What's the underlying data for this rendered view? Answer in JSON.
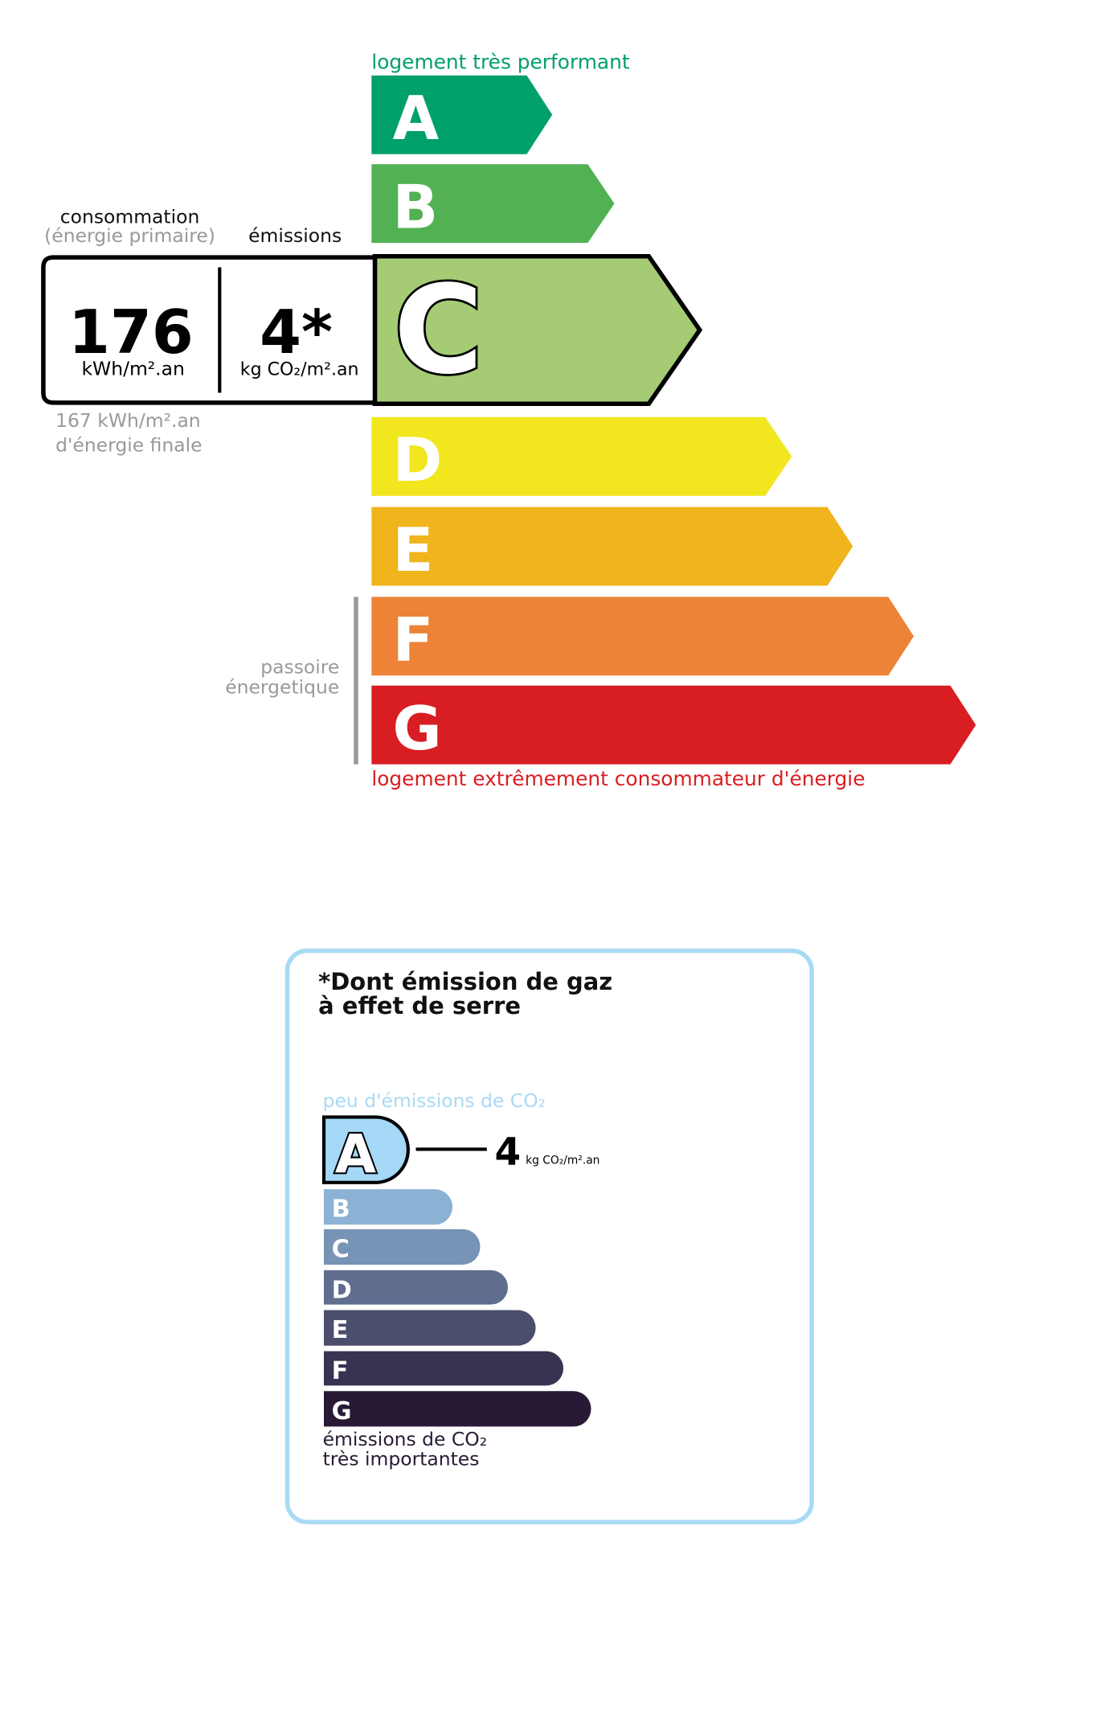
{
  "energy": {
    "top_label": "logement très performant",
    "bottom_label": "logement extrêmement consommateur d'énergie",
    "current_class": "C",
    "classes": [
      {
        "letter": "A",
        "color": "#00a06a"
      },
      {
        "letter": "B",
        "color": "#52b153"
      },
      {
        "letter": "C",
        "color": "#a5cc74"
      },
      {
        "letter": "D",
        "color": "#f2e61e"
      },
      {
        "letter": "E",
        "color": "#f0b41c"
      },
      {
        "letter": "F",
        "color": "#ec8336"
      },
      {
        "letter": "G",
        "color": "#d81e22"
      }
    ],
    "consumption_header": "consommation",
    "consumption_subheader": "(énergie primaire)",
    "emissions_header": "émissions",
    "consumption_value": "176",
    "consumption_unit": "kWh/m².an",
    "emissions_value": "4*",
    "emissions_unit": "kg CO₂/m².an",
    "final_energy_line1": "167 kWh/m².an",
    "final_energy_line2": "d'énergie finale",
    "passoire_line1": "passoire",
    "passoire_line2": "énergetique"
  },
  "ges": {
    "title_line1": "*Dont émission de gaz",
    "title_line2": "à effet de serre",
    "top_label": "peu d'émissions de CO₂",
    "bottom_line1": "émissions de CO₂",
    "bottom_line2": "très importantes",
    "current_class": "A",
    "value": "4",
    "unit": "kg CO₂/m².an",
    "border_color": "#a8daf5",
    "classes": [
      {
        "letter": "A",
        "color": "#a4d8f6"
      },
      {
        "letter": "B",
        "color": "#8bb2d4"
      },
      {
        "letter": "C",
        "color": "#7793b5"
      },
      {
        "letter": "D",
        "color": "#5f6d8f"
      },
      {
        "letter": "E",
        "color": "#4b4f6d"
      },
      {
        "letter": "F",
        "color": "#373452"
      },
      {
        "letter": "G",
        "color": "#281a35"
      }
    ]
  }
}
